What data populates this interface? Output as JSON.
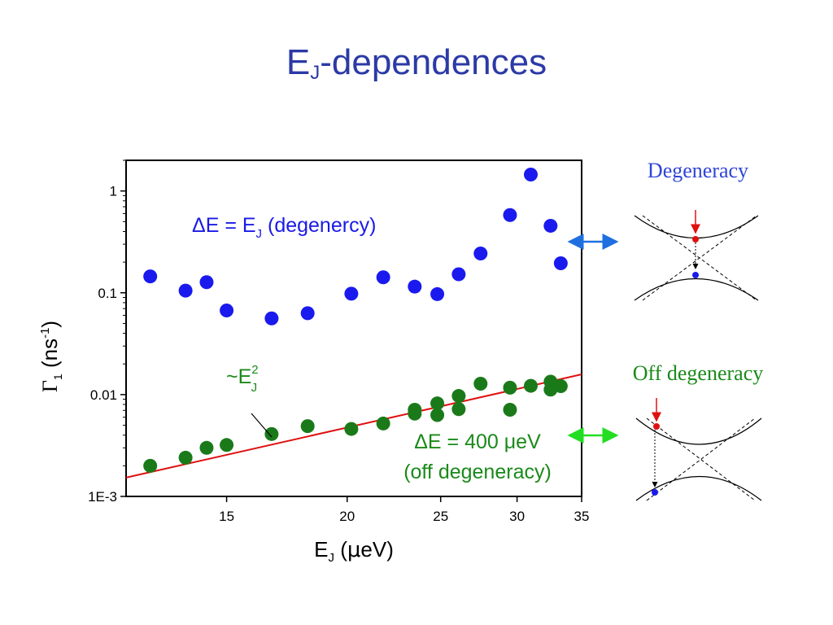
{
  "slide": {
    "title_main": "E",
    "title_sub": "J",
    "title_rest": "-dependences"
  },
  "chart_data": {
    "type": "scatter",
    "x_scale": "log",
    "y_scale": "log",
    "xlim": [
      11.8,
      35
    ],
    "ylim": [
      0.001,
      2.0
    ],
    "x_ticks": [
      15,
      20,
      25,
      30,
      35
    ],
    "x_tick_labels": [
      "15",
      "20",
      "25",
      "30",
      "35"
    ],
    "y_ticks": [
      0.001,
      0.01,
      0.1,
      1
    ],
    "y_tick_labels": [
      "1E-3",
      "0.01",
      "0.1",
      "1"
    ],
    "xlabel": "E_J (μeV)",
    "ylabel": "Γ_1 (ns^-1)",
    "series": [
      {
        "color": "#1a1aee",
        "x": [
          12.5,
          13.6,
          14.3,
          15.0,
          16.7,
          18.2,
          20.2,
          21.8,
          23.5,
          24.8,
          26.1,
          27.5,
          29.5,
          31.0,
          32.5,
          33.3
        ],
        "y": [
          0.145,
          0.105,
          0.127,
          0.067,
          0.056,
          0.063,
          0.098,
          0.142,
          0.115,
          0.097,
          0.152,
          0.243,
          0.58,
          1.45,
          0.455,
          0.195
        ]
      },
      {
        "color": "#1a7a1a",
        "x": [
          12.5,
          13.6,
          14.3,
          15.0,
          16.7,
          18.2,
          20.2,
          21.8,
          23.5,
          23.5,
          24.8,
          24.8,
          26.1,
          26.1,
          27.5,
          29.5,
          29.5,
          31.0,
          32.5,
          32.5,
          33.3
        ],
        "y": [
          0.002,
          0.0024,
          0.003,
          0.0032,
          0.0041,
          0.0049,
          0.0046,
          0.0052,
          0.0065,
          0.0071,
          0.0063,
          0.0082,
          0.0072,
          0.0097,
          0.0128,
          0.0071,
          0.0117,
          0.0122,
          0.0112,
          0.0134,
          0.0121
        ]
      }
    ],
    "fit_line": {
      "color": "#e01010",
      "x": [
        11.8,
        35
      ],
      "y": [
        0.00153,
        0.0158
      ]
    },
    "annotations": {
      "blue_label": {
        "prefix": "ΔE = E",
        "sub": "J",
        "suffix": " (degenercy)"
      },
      "green_label_1": "ΔE = 400 μeV",
      "green_label_2": "(off degeneracy)",
      "fit_label": {
        "main": "~E",
        "sup": "2",
        "sub": "J"
      }
    }
  },
  "side_diagrams": {
    "degeneracy_label": "Degeneracy",
    "off_degeneracy_label": "Off degeneracy"
  },
  "colors": {
    "title": "#2b3aa6",
    "blue_arrow": "#1f6fe0",
    "green_arrow": "#22dd22",
    "red_arrow": "#e01010"
  }
}
